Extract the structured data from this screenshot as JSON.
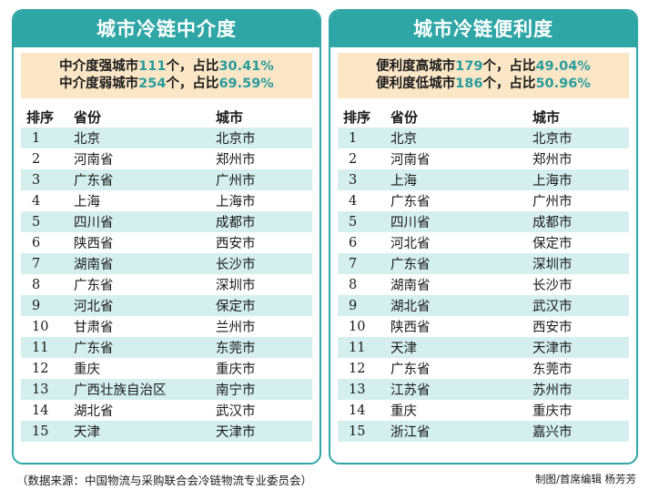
{
  "left": {
    "title": "城市冷链中介度",
    "summary": [
      {
        "pre": "中介度强城市",
        "count": "111",
        "mid": "个，占比",
        "pct": "30.41%"
      },
      {
        "pre": "中介度弱城市",
        "count": "254",
        "mid": "个，占比",
        "pct": "69.59%"
      }
    ],
    "headers": {
      "rank": "排序",
      "province": "省份",
      "city": "城市"
    },
    "rows": [
      {
        "rank": "1",
        "province": "北京",
        "city": "北京市"
      },
      {
        "rank": "2",
        "province": "河南省",
        "city": "郑州市"
      },
      {
        "rank": "3",
        "province": "广东省",
        "city": "广州市"
      },
      {
        "rank": "4",
        "province": "上海",
        "city": "上海市"
      },
      {
        "rank": "5",
        "province": "四川省",
        "city": "成都市"
      },
      {
        "rank": "6",
        "province": "陕西省",
        "city": "西安市"
      },
      {
        "rank": "7",
        "province": "湖南省",
        "city": "长沙市"
      },
      {
        "rank": "8",
        "province": "广东省",
        "city": "深圳市"
      },
      {
        "rank": "9",
        "province": "河北省",
        "city": "保定市"
      },
      {
        "rank": "10",
        "province": "甘肃省",
        "city": "兰州市"
      },
      {
        "rank": "11",
        "province": "广东省",
        "city": "东莞市"
      },
      {
        "rank": "12",
        "province": "重庆",
        "city": "重庆市"
      },
      {
        "rank": "13",
        "province": "广西壮族自治区",
        "city": "南宁市"
      },
      {
        "rank": "14",
        "province": "湖北省",
        "city": "武汉市"
      },
      {
        "rank": "15",
        "province": "天津",
        "city": "天津市"
      }
    ]
  },
  "right": {
    "title": "城市冷链便利度",
    "summary": [
      {
        "pre": "便利度高城市",
        "count": "179",
        "mid": "个，占比",
        "pct": "49.04%"
      },
      {
        "pre": "便利度低城市",
        "count": "186",
        "mid": "个，占比",
        "pct": "50.96%"
      }
    ],
    "headers": {
      "rank": "排序",
      "province": "省份",
      "city": "城市"
    },
    "rows": [
      {
        "rank": "1",
        "province": "北京",
        "city": "北京市"
      },
      {
        "rank": "2",
        "province": "河南省",
        "city": "郑州市"
      },
      {
        "rank": "3",
        "province": "上海",
        "city": "上海市"
      },
      {
        "rank": "4",
        "province": "广东省",
        "city": "广州市"
      },
      {
        "rank": "5",
        "province": "四川省",
        "city": "成都市"
      },
      {
        "rank": "6",
        "province": "河北省",
        "city": "保定市"
      },
      {
        "rank": "7",
        "province": "广东省",
        "city": "深圳市"
      },
      {
        "rank": "8",
        "province": "湖南省",
        "city": "长沙市"
      },
      {
        "rank": "9",
        "province": "湖北省",
        "city": "武汉市"
      },
      {
        "rank": "10",
        "province": "陕西省",
        "city": "西安市"
      },
      {
        "rank": "11",
        "province": "天津",
        "city": "天津市"
      },
      {
        "rank": "12",
        "province": "广东省",
        "city": "东莞市"
      },
      {
        "rank": "13",
        "province": "江苏省",
        "city": "苏州市"
      },
      {
        "rank": "14",
        "province": "重庆",
        "city": "重庆市"
      },
      {
        "rank": "15",
        "province": "浙江省",
        "city": "嘉兴市"
      }
    ]
  },
  "footer": {
    "source": "（数据来源：中国物流与采购联合会冷链物流专业委员会）",
    "credit": "制图/首席编辑 杨芳芳"
  },
  "colors": {
    "accent": "#2fa6a6",
    "summary_bg": "#fbe6c6",
    "row_stripe": "#d5efef",
    "number": "#2a9c9c"
  }
}
